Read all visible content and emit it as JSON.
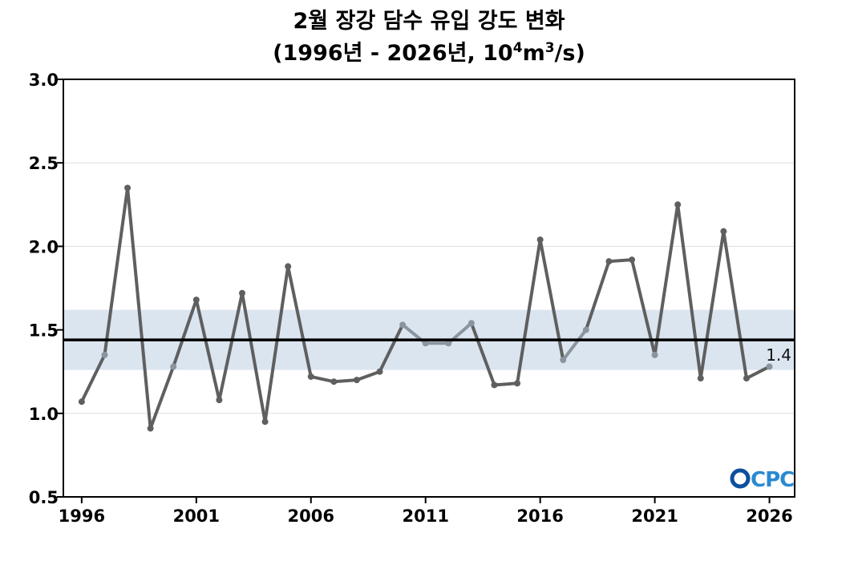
{
  "title_line1": "2월 장강 담수 유입 강도 변화",
  "title_line2_prefix": "(1996년 - 2026년, 10",
  "title_exp1": "4",
  "title_mid": "m",
  "title_exp2": "3",
  "title_suffix": "/s)",
  "logo_text": "OCPC",
  "colors": {
    "line_dark": "#5f5f5f",
    "line_light": "#8b959f",
    "band": "#dbe5f0",
    "mean_line": "#000000",
    "grid": "#dddddd",
    "logo": "#2a7fc1"
  },
  "chart_data": {
    "type": "line",
    "x": [
      1996,
      1997,
      1998,
      1999,
      2000,
      2001,
      2002,
      2003,
      2004,
      2005,
      2006,
      2007,
      2008,
      2009,
      2010,
      2011,
      2012,
      2013,
      2014,
      2015,
      2016,
      2017,
      2018,
      2019,
      2020,
      2021,
      2022,
      2023,
      2024,
      2025,
      2026
    ],
    "y": [
      1.07,
      1.35,
      2.35,
      0.91,
      1.28,
      1.68,
      1.08,
      1.72,
      0.95,
      1.88,
      1.22,
      1.19,
      1.2,
      1.25,
      1.53,
      1.42,
      1.42,
      1.54,
      1.17,
      1.18,
      2.04,
      1.32,
      1.5,
      1.91,
      1.92,
      1.35,
      2.25,
      1.21,
      2.09,
      1.21,
      1.28
    ],
    "mean": 1.44,
    "band": [
      1.26,
      1.62
    ],
    "annotation": "1.4",
    "ylim": [
      0.5,
      3.0
    ],
    "yticks": [
      "0.5",
      "1.0",
      "1.5",
      "2.0",
      "2.5",
      "3.0"
    ],
    "xlim": [
      1995.2,
      2027.1
    ],
    "xticks": [
      "1996",
      "2001",
      "2006",
      "2011",
      "2016",
      "2021",
      "2026"
    ],
    "grid": true
  }
}
